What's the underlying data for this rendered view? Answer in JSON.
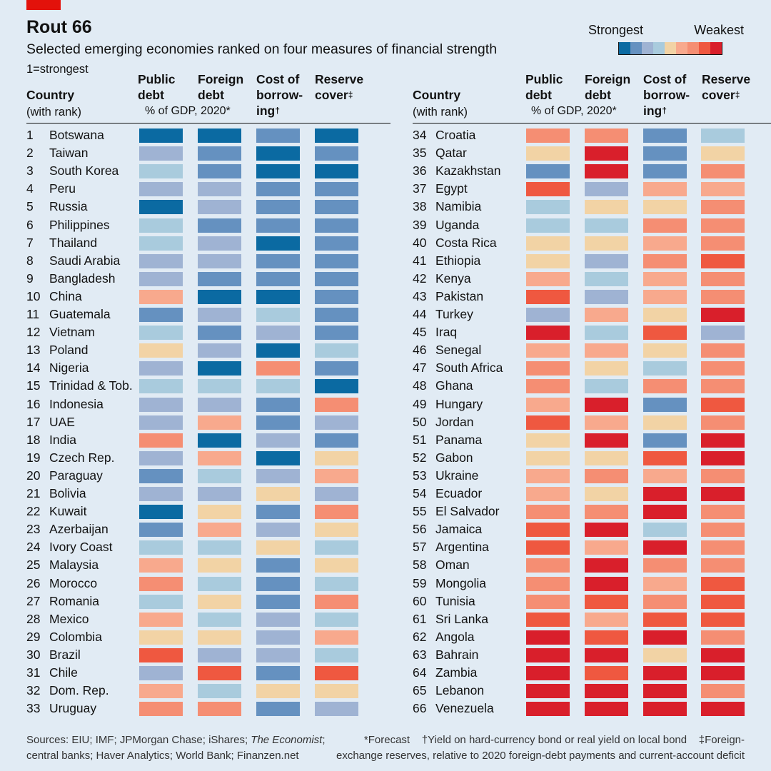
{
  "header": {
    "title": "Rout 66",
    "subtitle": "Selected emerging economies ranked on four measures of financial strength",
    "rank_note": "1=strongest"
  },
  "legend": {
    "strongest": "Strongest",
    "weakest": "Weakest",
    "colors": [
      "#0b6aa2",
      "#6591c0",
      "#9fb3d3",
      "#a9cbdd",
      "#f2d3a5",
      "#f8a98d",
      "#f58e73",
      "#ef5840",
      "#d91f2b"
    ]
  },
  "columns": {
    "country": "Country",
    "country_sub": "(with rank)",
    "public_debt": [
      "Public",
      "debt"
    ],
    "foreign_debt": [
      "Foreign",
      "debt"
    ],
    "cost_of_borrowing": [
      "Cost of",
      "borrow-",
      "ing"
    ],
    "cost_mark": "†",
    "reserve_cover": [
      "Reserve",
      "cover"
    ],
    "reserve_mark": "‡",
    "unit_note": "% of GDP, 2020*"
  },
  "footer": {
    "sources_1": "Sources: EIU; IMF; JPMorgan Chase; iShares; ",
    "sources_italic": "The Economist",
    "sources_2": ";",
    "sources_line2": "central banks; Haver Analytics; World Bank; Finanzen.net",
    "forecast": "*Forecast",
    "dagger_note": "†Yield on hard-currency bond or real yield on local bond",
    "ddagger_note_a": "‡Foreign-",
    "ddagger_note_b": "exchange reserves, relative to 2020 foreign-debt payments and current-account deficit"
  },
  "chart_data": {
    "type": "table",
    "title": "Rout 66",
    "subtitle": "Selected emerging economies ranked on four measures of financial strength",
    "scale_note": "Colour levels 0 (strongest) to 8 (weakest)",
    "measures": [
      "Public debt",
      "Foreign debt",
      "Cost of borrowing",
      "Reserve cover"
    ],
    "rows": [
      {
        "rank": 1,
        "country": "Botswana",
        "levels": [
          0,
          0,
          1,
          0
        ]
      },
      {
        "rank": 2,
        "country": "Taiwan",
        "levels": [
          2,
          1,
          0,
          1
        ]
      },
      {
        "rank": 3,
        "country": "South Korea",
        "levels": [
          3,
          1,
          0,
          0
        ]
      },
      {
        "rank": 4,
        "country": "Peru",
        "levels": [
          2,
          2,
          1,
          1
        ]
      },
      {
        "rank": 5,
        "country": "Russia",
        "levels": [
          0,
          2,
          1,
          1
        ]
      },
      {
        "rank": 6,
        "country": "Philippines",
        "levels": [
          3,
          1,
          1,
          1
        ]
      },
      {
        "rank": 7,
        "country": "Thailand",
        "levels": [
          3,
          2,
          0,
          1
        ]
      },
      {
        "rank": 8,
        "country": "Saudi Arabia",
        "levels": [
          2,
          2,
          1,
          1
        ]
      },
      {
        "rank": 9,
        "country": "Bangladesh",
        "levels": [
          2,
          1,
          1,
          1
        ]
      },
      {
        "rank": 10,
        "country": "China",
        "levels": [
          5,
          0,
          0,
          1
        ]
      },
      {
        "rank": 11,
        "country": "Guatemala",
        "levels": [
          1,
          2,
          3,
          1
        ]
      },
      {
        "rank": 12,
        "country": "Vietnam",
        "levels": [
          3,
          1,
          2,
          1
        ]
      },
      {
        "rank": 13,
        "country": "Poland",
        "levels": [
          4,
          2,
          0,
          3
        ]
      },
      {
        "rank": 14,
        "country": "Nigeria",
        "levels": [
          2,
          0,
          6,
          1
        ]
      },
      {
        "rank": 15,
        "country": "Trinidad & Tob.",
        "levels": [
          3,
          3,
          3,
          0
        ]
      },
      {
        "rank": 16,
        "country": "Indonesia",
        "levels": [
          2,
          2,
          1,
          6
        ]
      },
      {
        "rank": 17,
        "country": "UAE",
        "levels": [
          2,
          5,
          1,
          2
        ]
      },
      {
        "rank": 18,
        "country": "India",
        "levels": [
          6,
          0,
          2,
          1
        ]
      },
      {
        "rank": 19,
        "country": "Czech Rep.",
        "levels": [
          2,
          5,
          0,
          4
        ]
      },
      {
        "rank": 20,
        "country": "Paraguay",
        "levels": [
          1,
          3,
          2,
          5
        ]
      },
      {
        "rank": 21,
        "country": "Bolivia",
        "levels": [
          2,
          2,
          4,
          2
        ]
      },
      {
        "rank": 22,
        "country": "Kuwait",
        "levels": [
          0,
          4,
          1,
          6
        ]
      },
      {
        "rank": 23,
        "country": "Azerbaijan",
        "levels": [
          1,
          5,
          2,
          4
        ]
      },
      {
        "rank": 24,
        "country": "Ivory Coast",
        "levels": [
          3,
          3,
          4,
          3
        ]
      },
      {
        "rank": 25,
        "country": "Malaysia",
        "levels": [
          5,
          4,
          1,
          4
        ]
      },
      {
        "rank": 26,
        "country": "Morocco",
        "levels": [
          6,
          3,
          1,
          3
        ]
      },
      {
        "rank": 27,
        "country": "Romania",
        "levels": [
          3,
          4,
          1,
          6
        ]
      },
      {
        "rank": 28,
        "country": "Mexico",
        "levels": [
          5,
          3,
          2,
          3
        ]
      },
      {
        "rank": 29,
        "country": "Colombia",
        "levels": [
          4,
          4,
          2,
          5
        ]
      },
      {
        "rank": 30,
        "country": "Brazil",
        "levels": [
          7,
          2,
          2,
          3
        ]
      },
      {
        "rank": 31,
        "country": "Chile",
        "levels": [
          2,
          7,
          1,
          7
        ]
      },
      {
        "rank": 32,
        "country": "Dom. Rep.",
        "levels": [
          5,
          3,
          4,
          4
        ]
      },
      {
        "rank": 33,
        "country": "Uruguay",
        "levels": [
          6,
          6,
          1,
          2
        ]
      },
      {
        "rank": 34,
        "country": "Croatia",
        "levels": [
          6,
          6,
          1,
          3
        ]
      },
      {
        "rank": 35,
        "country": "Qatar",
        "levels": [
          4,
          8,
          1,
          4
        ]
      },
      {
        "rank": 36,
        "country": "Kazakhstan",
        "levels": [
          1,
          8,
          1,
          6
        ]
      },
      {
        "rank": 37,
        "country": "Egypt",
        "levels": [
          7,
          2,
          5,
          5
        ]
      },
      {
        "rank": 38,
        "country": "Namibia",
        "levels": [
          3,
          4,
          4,
          6
        ]
      },
      {
        "rank": 39,
        "country": "Uganda",
        "levels": [
          3,
          3,
          6,
          6
        ]
      },
      {
        "rank": 40,
        "country": "Costa Rica",
        "levels": [
          4,
          4,
          5,
          6
        ]
      },
      {
        "rank": 41,
        "country": "Ethiopia",
        "levels": [
          4,
          2,
          6,
          7
        ]
      },
      {
        "rank": 42,
        "country": "Kenya",
        "levels": [
          5,
          3,
          5,
          6
        ]
      },
      {
        "rank": 43,
        "country": "Pakistan",
        "levels": [
          7,
          2,
          5,
          6
        ]
      },
      {
        "rank": 44,
        "country": "Turkey",
        "levels": [
          2,
          5,
          4,
          8
        ]
      },
      {
        "rank": 45,
        "country": "Iraq",
        "levels": [
          8,
          3,
          7,
          2
        ]
      },
      {
        "rank": 46,
        "country": "Senegal",
        "levels": [
          5,
          5,
          4,
          6
        ]
      },
      {
        "rank": 47,
        "country": "South Africa",
        "levels": [
          6,
          4,
          3,
          6
        ]
      },
      {
        "rank": 48,
        "country": "Ghana",
        "levels": [
          6,
          3,
          6,
          6
        ]
      },
      {
        "rank": 49,
        "country": "Hungary",
        "levels": [
          5,
          8,
          1,
          7
        ]
      },
      {
        "rank": 50,
        "country": "Jordan",
        "levels": [
          7,
          5,
          4,
          6
        ]
      },
      {
        "rank": 51,
        "country": "Panama",
        "levels": [
          4,
          8,
          1,
          8
        ]
      },
      {
        "rank": 52,
        "country": "Gabon",
        "levels": [
          4,
          4,
          7,
          8
        ]
      },
      {
        "rank": 53,
        "country": "Ukraine",
        "levels": [
          5,
          6,
          5,
          6
        ]
      },
      {
        "rank": 54,
        "country": "Ecuador",
        "levels": [
          5,
          4,
          8,
          8
        ]
      },
      {
        "rank": 55,
        "country": "El Salvador",
        "levels": [
          6,
          6,
          8,
          6
        ]
      },
      {
        "rank": 56,
        "country": "Jamaica",
        "levels": [
          7,
          8,
          3,
          6
        ]
      },
      {
        "rank": 57,
        "country": "Argentina",
        "levels": [
          7,
          5,
          8,
          6
        ]
      },
      {
        "rank": 58,
        "country": "Oman",
        "levels": [
          6,
          8,
          6,
          6
        ]
      },
      {
        "rank": 59,
        "country": "Mongolia",
        "levels": [
          6,
          8,
          5,
          7
        ]
      },
      {
        "rank": 60,
        "country": "Tunisia",
        "levels": [
          6,
          7,
          6,
          7
        ]
      },
      {
        "rank": 61,
        "country": "Sri Lanka",
        "levels": [
          7,
          5,
          7,
          7
        ]
      },
      {
        "rank": 62,
        "country": "Angola",
        "levels": [
          8,
          7,
          8,
          6
        ]
      },
      {
        "rank": 63,
        "country": "Bahrain",
        "levels": [
          8,
          8,
          4,
          8
        ]
      },
      {
        "rank": 64,
        "country": "Zambia",
        "levels": [
          8,
          7,
          8,
          8
        ]
      },
      {
        "rank": 65,
        "country": "Lebanon",
        "levels": [
          8,
          8,
          8,
          6
        ]
      },
      {
        "rank": 66,
        "country": "Venezuela",
        "levels": [
          8,
          8,
          8,
          8
        ]
      }
    ]
  }
}
